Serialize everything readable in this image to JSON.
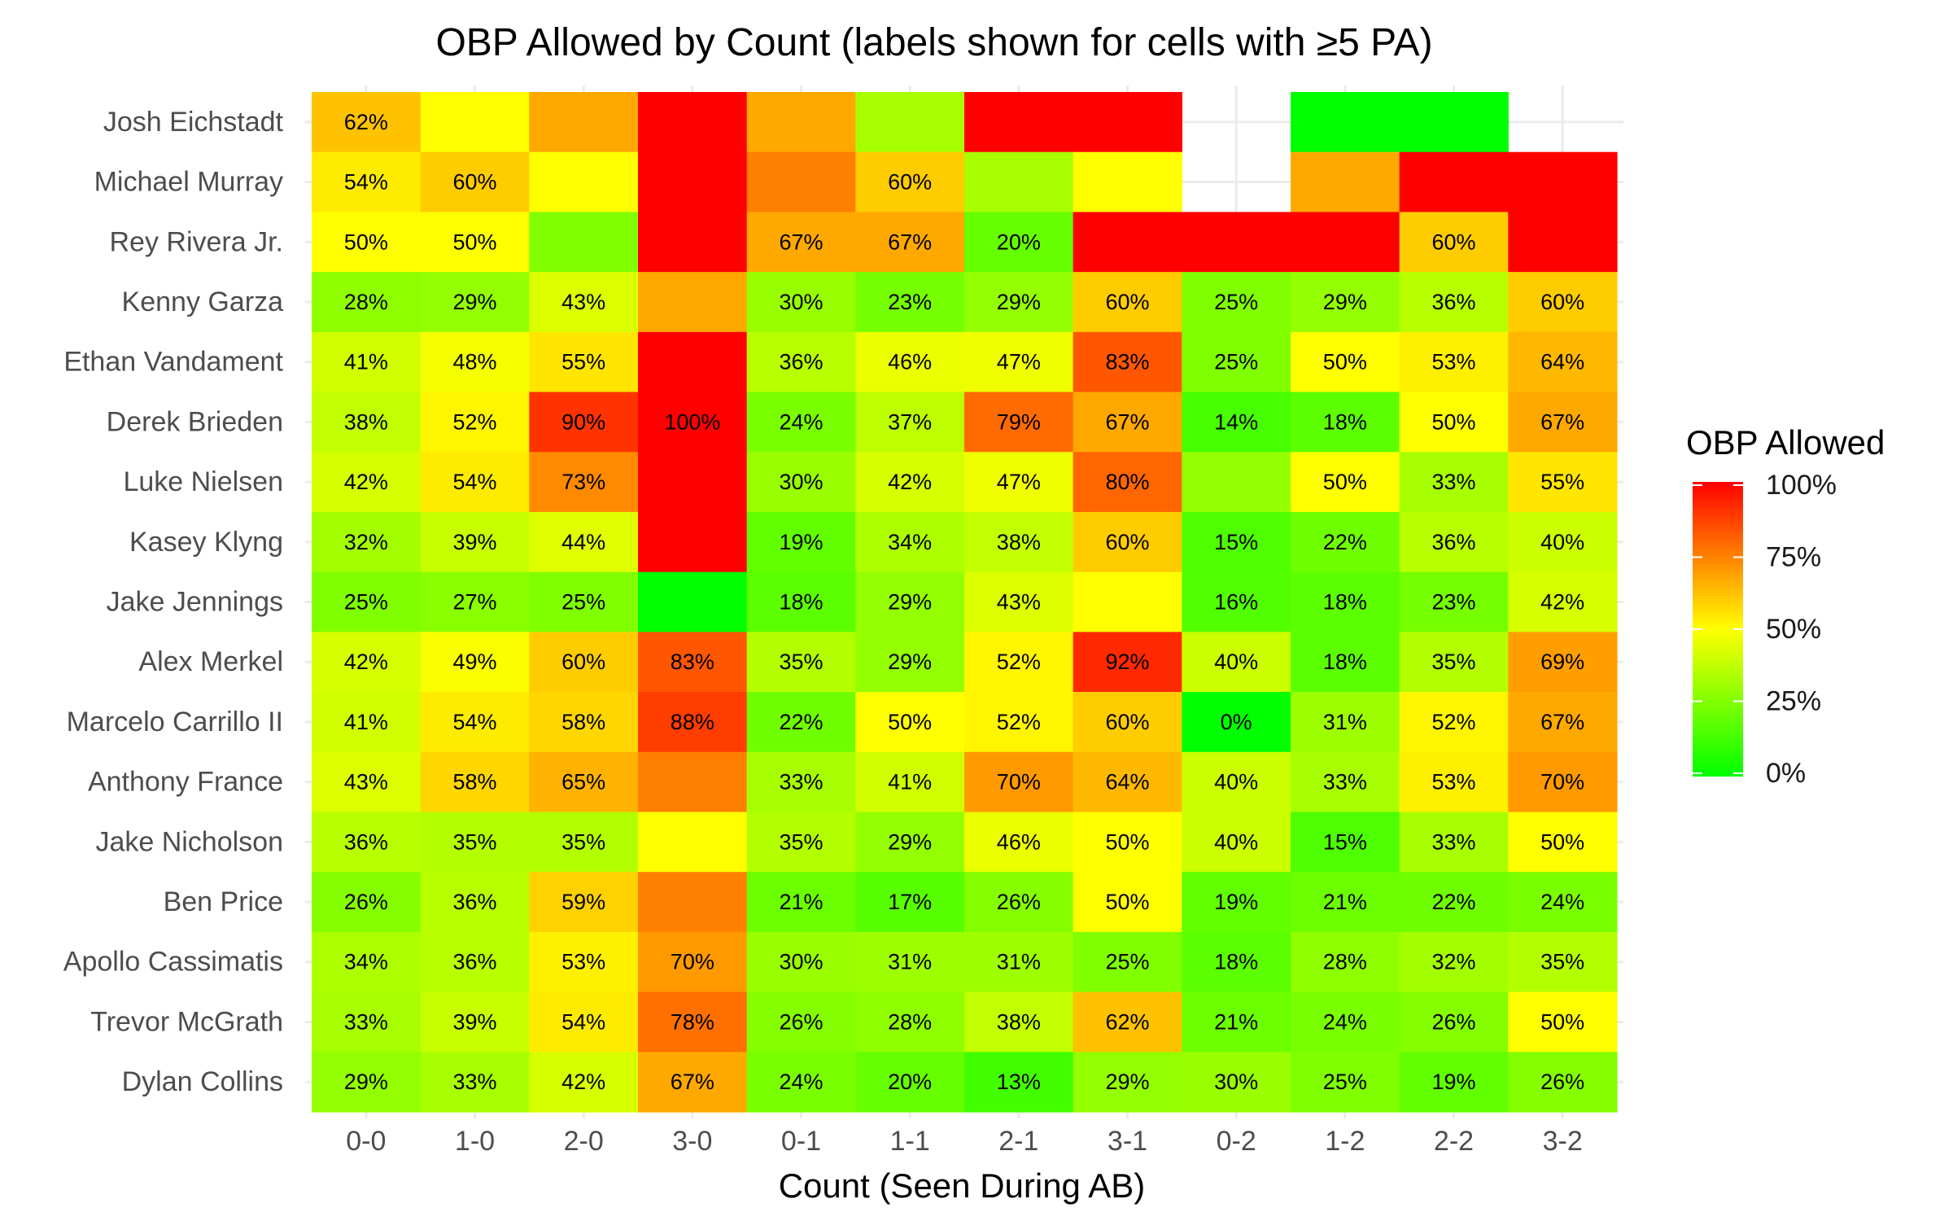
{
  "chart_data": {
    "type": "heatmap",
    "title": "OBP Allowed by Count (labels shown for cells with ≥5 PA)",
    "xlabel": "Count (Seen During AB)",
    "ylabel": "",
    "categories": [
      "0-0",
      "1-0",
      "2-0",
      "3-0",
      "0-1",
      "1-1",
      "2-1",
      "3-1",
      "0-2",
      "1-2",
      "2-2",
      "3-2"
    ],
    "rows": [
      "Josh Eichstadt",
      "Michael Murray",
      "Rey Rivera Jr.",
      "Kenny Garza",
      "Ethan Vandament",
      "Derek Brieden",
      "Luke Nielsen",
      "Kasey Klyng",
      "Jake Jennings",
      "Alex Merkel",
      "Marcelo Carrillo II",
      "Anthony France",
      "Jake Nicholson",
      "Ben Price",
      "Apollo Cassimatis",
      "Trevor McGrath",
      "Dylan Collins"
    ],
    "values": [
      [
        0.62,
        0.5,
        0.67,
        1.0,
        0.67,
        0.33,
        1.0,
        1.0,
        null,
        0.0,
        0.0,
        null
      ],
      [
        0.54,
        0.6,
        0.5,
        1.0,
        0.75,
        0.6,
        0.33,
        0.5,
        null,
        0.67,
        1.0,
        1.0
      ],
      [
        0.5,
        0.5,
        0.25,
        1.0,
        0.67,
        0.67,
        0.2,
        1.0,
        1.0,
        1.0,
        0.6,
        1.0
      ],
      [
        0.28,
        0.29,
        0.43,
        0.67,
        0.3,
        0.23,
        0.29,
        0.6,
        0.25,
        0.29,
        0.36,
        0.6
      ],
      [
        0.41,
        0.48,
        0.55,
        1.0,
        0.36,
        0.46,
        0.47,
        0.83,
        0.25,
        0.5,
        0.53,
        0.64
      ],
      [
        0.38,
        0.52,
        0.9,
        1.0,
        0.24,
        0.37,
        0.79,
        0.67,
        0.14,
        0.18,
        0.5,
        0.67
      ],
      [
        0.42,
        0.54,
        0.73,
        1.0,
        0.3,
        0.42,
        0.47,
        0.8,
        0.29,
        0.5,
        0.33,
        0.55
      ],
      [
        0.32,
        0.39,
        0.44,
        1.0,
        0.19,
        0.34,
        0.38,
        0.6,
        0.15,
        0.22,
        0.36,
        0.4
      ],
      [
        0.25,
        0.27,
        0.25,
        0.0,
        0.18,
        0.29,
        0.43,
        0.5,
        0.16,
        0.18,
        0.23,
        0.42
      ],
      [
        0.42,
        0.49,
        0.6,
        0.83,
        0.35,
        0.29,
        0.52,
        0.92,
        0.4,
        0.18,
        0.35,
        0.69
      ],
      [
        0.41,
        0.54,
        0.58,
        0.88,
        0.22,
        0.5,
        0.52,
        0.6,
        0.0,
        0.31,
        0.52,
        0.67
      ],
      [
        0.43,
        0.58,
        0.65,
        0.75,
        0.33,
        0.41,
        0.7,
        0.64,
        0.4,
        0.33,
        0.53,
        0.7
      ],
      [
        0.36,
        0.35,
        0.35,
        0.5,
        0.35,
        0.29,
        0.46,
        0.5,
        0.4,
        0.15,
        0.33,
        0.5
      ],
      [
        0.26,
        0.36,
        0.59,
        0.75,
        0.21,
        0.17,
        0.26,
        0.5,
        0.19,
        0.21,
        0.22,
        0.24
      ],
      [
        0.34,
        0.36,
        0.53,
        0.7,
        0.3,
        0.31,
        0.31,
        0.25,
        0.18,
        0.28,
        0.32,
        0.35
      ],
      [
        0.33,
        0.39,
        0.54,
        0.78,
        0.26,
        0.28,
        0.38,
        0.62,
        0.21,
        0.24,
        0.26,
        0.5
      ],
      [
        0.29,
        0.33,
        0.42,
        0.67,
        0.24,
        0.2,
        0.13,
        0.29,
        0.3,
        0.25,
        0.19,
        0.26
      ]
    ],
    "labels": [
      [
        "62%",
        "",
        "",
        "",
        "",
        "",
        "",
        "",
        "",
        "",
        "",
        ""
      ],
      [
        "54%",
        "60%",
        "",
        "",
        "",
        "60%",
        "",
        "",
        "",
        "",
        "",
        ""
      ],
      [
        "50%",
        "50%",
        "",
        "",
        "67%",
        "67%",
        "20%",
        "",
        "",
        "",
        "60%",
        ""
      ],
      [
        "28%",
        "29%",
        "43%",
        "",
        "30%",
        "23%",
        "29%",
        "60%",
        "25%",
        "29%",
        "36%",
        "60%"
      ],
      [
        "41%",
        "48%",
        "55%",
        "",
        "36%",
        "46%",
        "47%",
        "83%",
        "25%",
        "50%",
        "53%",
        "64%"
      ],
      [
        "38%",
        "52%",
        "90%",
        "100%",
        "24%",
        "37%",
        "79%",
        "67%",
        "14%",
        "18%",
        "50%",
        "67%"
      ],
      [
        "42%",
        "54%",
        "73%",
        "",
        "30%",
        "42%",
        "47%",
        "80%",
        "",
        "50%",
        "33%",
        "55%"
      ],
      [
        "32%",
        "39%",
        "44%",
        "",
        "19%",
        "34%",
        "38%",
        "60%",
        "15%",
        "22%",
        "36%",
        "40%"
      ],
      [
        "25%",
        "27%",
        "25%",
        "",
        "18%",
        "29%",
        "43%",
        "",
        "16%",
        "18%",
        "23%",
        "42%"
      ],
      [
        "42%",
        "49%",
        "60%",
        "83%",
        "35%",
        "29%",
        "52%",
        "92%",
        "40%",
        "18%",
        "35%",
        "69%"
      ],
      [
        "41%",
        "54%",
        "58%",
        "88%",
        "22%",
        "50%",
        "52%",
        "60%",
        "0%",
        "31%",
        "52%",
        "67%"
      ],
      [
        "43%",
        "58%",
        "65%",
        "",
        "33%",
        "41%",
        "70%",
        "64%",
        "40%",
        "33%",
        "53%",
        "70%"
      ],
      [
        "36%",
        "35%",
        "35%",
        "",
        "35%",
        "29%",
        "46%",
        "50%",
        "40%",
        "15%",
        "33%",
        "50%"
      ],
      [
        "26%",
        "36%",
        "59%",
        "",
        "21%",
        "17%",
        "26%",
        "50%",
        "19%",
        "21%",
        "22%",
        "24%"
      ],
      [
        "34%",
        "36%",
        "53%",
        "70%",
        "30%",
        "31%",
        "31%",
        "25%",
        "18%",
        "28%",
        "32%",
        "35%"
      ],
      [
        "33%",
        "39%",
        "54%",
        "78%",
        "26%",
        "28%",
        "38%",
        "62%",
        "21%",
        "24%",
        "26%",
        "50%"
      ],
      [
        "29%",
        "33%",
        "42%",
        "67%",
        "24%",
        "20%",
        "13%",
        "29%",
        "30%",
        "25%",
        "19%",
        "26%"
      ]
    ],
    "color_scale": {
      "low": "#00ff00",
      "mid": "#ffff00",
      "high": "#ff0000",
      "domain": [
        0,
        1
      ]
    },
    "legend": {
      "title": "OBP Allowed",
      "ticks": [
        1.0,
        0.75,
        0.5,
        0.25,
        0.0
      ],
      "tick_labels": [
        "100%",
        "75%",
        "50%",
        "25%",
        "0%"
      ],
      "position": "right"
    },
    "grid": true
  }
}
